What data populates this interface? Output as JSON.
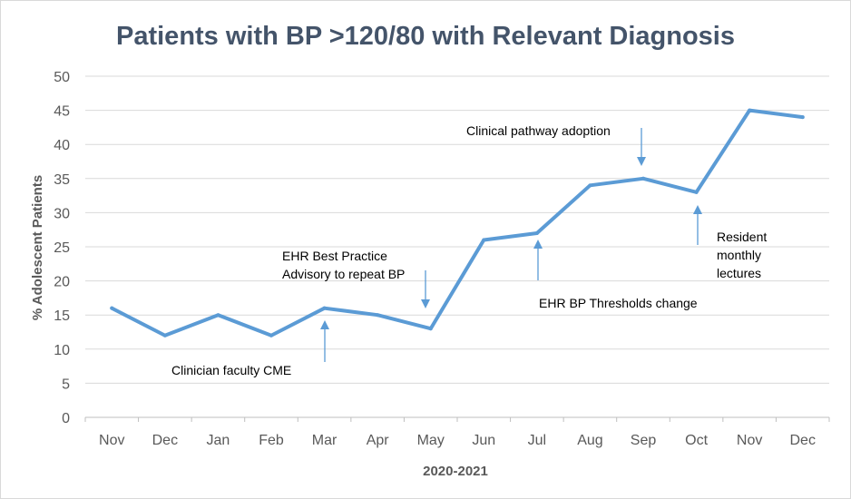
{
  "chart_data": {
    "type": "line",
    "title": "Patients with BP >120/80 with Relevant Diagnosis",
    "xlabel": "2020-2021",
    "ylabel": "% Adolescent Patients",
    "categories": [
      "Nov",
      "Dec",
      "Jan",
      "Feb",
      "Mar",
      "Apr",
      "May",
      "Jun",
      "Jul",
      "Aug",
      "Sep",
      "Oct",
      "Nov",
      "Dec"
    ],
    "series": [
      {
        "values": [
          16,
          12,
          15,
          12,
          16,
          15,
          13,
          26,
          27,
          34,
          35,
          33,
          45,
          44
        ],
        "color": "#5b9bd5"
      }
    ],
    "ylim": [
      0,
      50
    ],
    "yticks": [
      0,
      5,
      10,
      15,
      20,
      25,
      30,
      35,
      40,
      45,
      50
    ],
    "grid": true,
    "legend": "none",
    "annotations": [
      {
        "lines": [
          "Clinician faculty CME"
        ],
        "category_index": 4,
        "arrow_direction": "up"
      },
      {
        "lines": [
          "EHR Best Practice",
          "Advisory to repeat BP"
        ],
        "category_index": 6,
        "arrow_direction": "down"
      },
      {
        "lines": [
          "EHR BP Thresholds change"
        ],
        "category_index": 8,
        "arrow_direction": "up"
      },
      {
        "lines": [
          "Clinical pathway adoption"
        ],
        "category_index": 10,
        "arrow_direction": "down"
      },
      {
        "lines": [
          "Resident",
          "monthly",
          "lectures"
        ],
        "category_index": 11,
        "arrow_direction": "up"
      }
    ]
  }
}
